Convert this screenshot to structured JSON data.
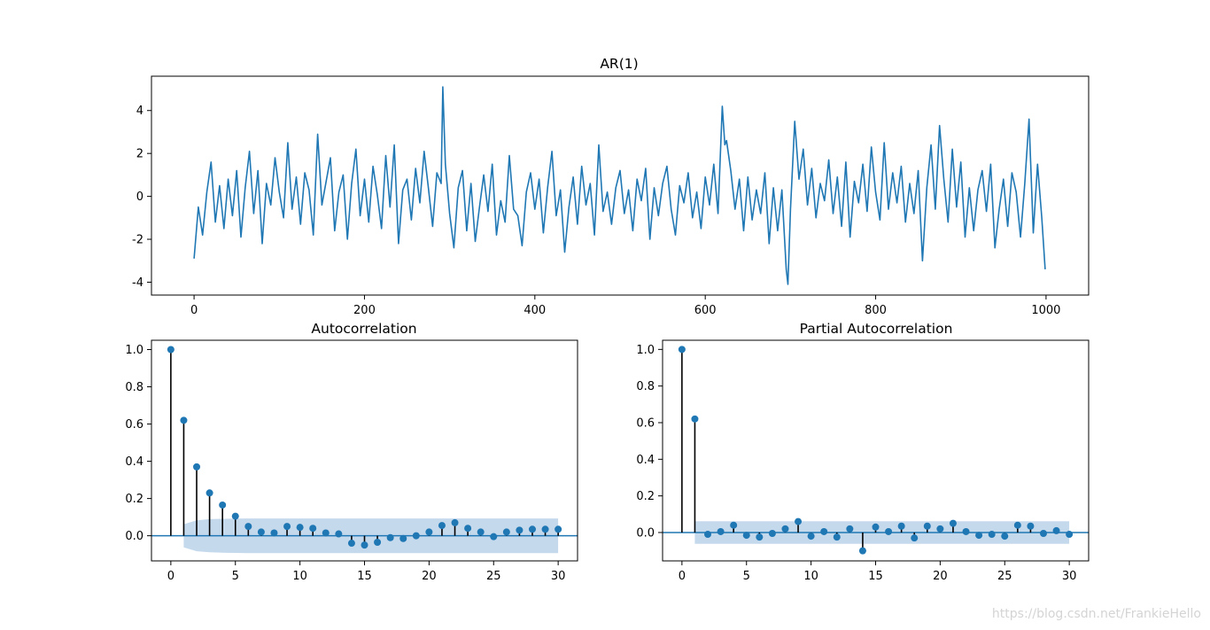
{
  "chart_data": [
    {
      "type": "line",
      "title": "AR(1)",
      "xlabel": "",
      "ylabel": "",
      "xlim": [
        -50,
        1050
      ],
      "ylim": [
        -4.6,
        5.6
      ],
      "xticks": [
        0,
        200,
        400,
        600,
        800,
        1000
      ],
      "yticks": [
        -4,
        -2,
        0,
        2,
        4
      ],
      "grid": false,
      "series_color": "#1f77b4",
      "x": [
        0,
        5,
        10,
        15,
        20,
        25,
        30,
        35,
        40,
        45,
        50,
        55,
        60,
        65,
        70,
        75,
        80,
        85,
        90,
        95,
        100,
        105,
        110,
        115,
        120,
        125,
        130,
        135,
        140,
        145,
        150,
        155,
        160,
        165,
        170,
        175,
        180,
        185,
        190,
        195,
        200,
        205,
        210,
        215,
        220,
        225,
        230,
        235,
        240,
        245,
        250,
        255,
        260,
        265,
        270,
        275,
        280,
        285,
        290,
        292,
        295,
        300,
        305,
        310,
        315,
        320,
        325,
        330,
        335,
        340,
        345,
        350,
        355,
        360,
        365,
        370,
        375,
        380,
        385,
        390,
        395,
        400,
        405,
        410,
        415,
        420,
        425,
        430,
        435,
        440,
        445,
        450,
        455,
        460,
        465,
        470,
        475,
        480,
        485,
        490,
        495,
        500,
        505,
        510,
        515,
        520,
        525,
        530,
        535,
        540,
        545,
        550,
        555,
        560,
        565,
        570,
        575,
        580,
        585,
        590,
        595,
        600,
        605,
        610,
        615,
        620,
        623,
        625,
        630,
        635,
        640,
        645,
        650,
        655,
        660,
        665,
        670,
        675,
        680,
        685,
        690,
        695,
        697,
        700,
        705,
        710,
        715,
        720,
        725,
        730,
        735,
        740,
        745,
        750,
        755,
        760,
        765,
        770,
        775,
        780,
        785,
        790,
        795,
        800,
        805,
        810,
        815,
        820,
        825,
        830,
        835,
        840,
        845,
        850,
        855,
        860,
        865,
        870,
        875,
        880,
        885,
        890,
        895,
        900,
        905,
        910,
        915,
        920,
        925,
        930,
        935,
        940,
        945,
        950,
        955,
        960,
        965,
        970,
        975,
        980,
        985,
        990,
        995,
        999
      ],
      "values": [
        -2.9,
        -0.5,
        -1.8,
        0.2,
        1.6,
        -1.2,
        0.5,
        -1.5,
        0.8,
        -0.9,
        1.2,
        -1.9,
        0.4,
        2.1,
        -0.8,
        1.2,
        -2.2,
        0.6,
        -0.4,
        1.8,
        0.2,
        -1.0,
        2.5,
        -0.6,
        0.9,
        -1.3,
        1.1,
        0.3,
        -1.8,
        2.9,
        -0.4,
        0.7,
        1.8,
        -1.6,
        0.2,
        1.0,
        -2.0,
        0.6,
        2.2,
        -0.9,
        0.8,
        -1.2,
        1.4,
        0.1,
        -1.5,
        1.9,
        -0.5,
        2.4,
        -2.2,
        0.3,
        0.8,
        -1.1,
        1.3,
        -0.3,
        2.1,
        0.4,
        -1.4,
        1.1,
        0.6,
        5.1,
        1.5,
        -0.8,
        -2.4,
        0.4,
        1.2,
        -1.6,
        0.6,
        -2.1,
        -0.5,
        1.0,
        -0.7,
        1.5,
        -1.8,
        -0.2,
        -1.2,
        1.9,
        -0.6,
        -0.9,
        -2.3,
        0.2,
        1.1,
        -0.6,
        0.8,
        -1.7,
        0.4,
        2.1,
        -0.9,
        0.3,
        -2.6,
        -0.5,
        0.9,
        -1.3,
        1.4,
        -0.4,
        0.6,
        -1.8,
        2.4,
        -0.7,
        0.2,
        -1.3,
        0.4,
        1.2,
        -0.8,
        0.3,
        -1.6,
        0.8,
        -0.2,
        1.3,
        -2.0,
        0.4,
        -0.9,
        0.6,
        1.4,
        -0.6,
        -1.8,
        0.5,
        -0.3,
        1.1,
        -1.0,
        0.2,
        -1.5,
        0.9,
        -0.4,
        1.5,
        -0.8,
        4.2,
        2.4,
        2.6,
        1.2,
        -0.6,
        0.8,
        -1.6,
        0.9,
        -1.1,
        0.3,
        -0.8,
        1.1,
        -2.2,
        0.4,
        -1.6,
        0.3,
        -3.4,
        -4.1,
        -0.6,
        3.5,
        0.8,
        2.2,
        -0.4,
        1.3,
        -1.0,
        0.6,
        -0.2,
        1.7,
        -0.8,
        0.9,
        -1.4,
        1.6,
        -1.9,
        0.7,
        -0.3,
        1.5,
        -0.7,
        2.3,
        0.2,
        -1.1,
        2.5,
        -0.6,
        1.1,
        -0.3,
        1.4,
        -1.2,
        0.6,
        -0.8,
        1.2,
        -3.0,
        0.4,
        2.4,
        -0.6,
        3.3,
        0.8,
        -1.2,
        2.2,
        -0.5,
        1.6,
        -1.9,
        0.4,
        -1.6,
        0.3,
        1.2,
        -0.7,
        1.5,
        -2.4,
        -0.6,
        0.8,
        -1.4,
        1.1,
        0.2,
        -1.9,
        0.6,
        3.6,
        -1.7,
        1.5,
        -1.0,
        -3.4
      ]
    },
    {
      "type": "stem",
      "title": "Autocorrelation",
      "xlabel": "",
      "ylabel": "",
      "xlim": [
        -1.5,
        31.5
      ],
      "ylim": [
        -0.135,
        1.05
      ],
      "xticks": [
        0,
        5,
        10,
        15,
        20,
        25,
        30
      ],
      "yticks": [
        0.0,
        0.2,
        0.4,
        0.6,
        0.8,
        1.0
      ],
      "grid": false,
      "lags": [
        0,
        1,
        2,
        3,
        4,
        5,
        6,
        7,
        8,
        9,
        10,
        11,
        12,
        13,
        14,
        15,
        16,
        17,
        18,
        19,
        20,
        21,
        22,
        23,
        24,
        25,
        26,
        27,
        28,
        29,
        30
      ],
      "values": [
        1.0,
        0.62,
        0.37,
        0.23,
        0.165,
        0.105,
        0.05,
        0.02,
        0.015,
        0.05,
        0.045,
        0.04,
        0.015,
        0.01,
        -0.04,
        -0.05,
        -0.035,
        -0.01,
        -0.015,
        0.0,
        0.02,
        0.055,
        0.07,
        0.04,
        0.02,
        -0.005,
        0.02,
        0.03,
        0.035,
        0.035,
        0.035
      ],
      "confint_upper": [
        0.0,
        0.062,
        0.083,
        0.089,
        0.091,
        0.092,
        0.093,
        0.093,
        0.093,
        0.093,
        0.093,
        0.093,
        0.093,
        0.093,
        0.093,
        0.093,
        0.093,
        0.093,
        0.093,
        0.093,
        0.093,
        0.093,
        0.093,
        0.093,
        0.093,
        0.093,
        0.093,
        0.093,
        0.093,
        0.093,
        0.093
      ],
      "marker_color": "#1f77b4",
      "band_color": "#c5d9ed"
    },
    {
      "type": "stem",
      "title": "Partial Autocorrelation",
      "xlabel": "",
      "ylabel": "",
      "xlim": [
        -1.5,
        31.5
      ],
      "ylim": [
        -0.155,
        1.05
      ],
      "xticks": [
        0,
        5,
        10,
        15,
        20,
        25,
        30
      ],
      "yticks": [
        0.0,
        0.2,
        0.4,
        0.6,
        0.8,
        1.0
      ],
      "grid": false,
      "lags": [
        0,
        1,
        2,
        3,
        4,
        5,
        6,
        7,
        8,
        9,
        10,
        11,
        12,
        13,
        14,
        15,
        16,
        17,
        18,
        19,
        20,
        21,
        22,
        23,
        24,
        25,
        26,
        27,
        28,
        29,
        30
      ],
      "values": [
        1.0,
        0.62,
        -0.01,
        0.005,
        0.04,
        -0.015,
        -0.025,
        -0.005,
        0.02,
        0.06,
        -0.02,
        0.005,
        -0.025,
        0.02,
        -0.1,
        0.03,
        0.005,
        0.035,
        -0.03,
        0.035,
        0.02,
        0.05,
        0.005,
        -0.015,
        -0.01,
        -0.02,
        0.04,
        0.035,
        -0.005,
        0.01,
        -0.01
      ],
      "confint_upper": [
        0.0,
        0.062,
        0.062,
        0.062,
        0.062,
        0.062,
        0.062,
        0.062,
        0.062,
        0.062,
        0.062,
        0.062,
        0.062,
        0.062,
        0.062,
        0.062,
        0.062,
        0.062,
        0.062,
        0.062,
        0.062,
        0.062,
        0.062,
        0.062,
        0.062,
        0.062,
        0.062,
        0.062,
        0.062,
        0.062,
        0.062
      ],
      "marker_color": "#1f77b4",
      "band_color": "#c5d9ed"
    }
  ],
  "watermark": "https://blog.csdn.net/FrankieHello"
}
